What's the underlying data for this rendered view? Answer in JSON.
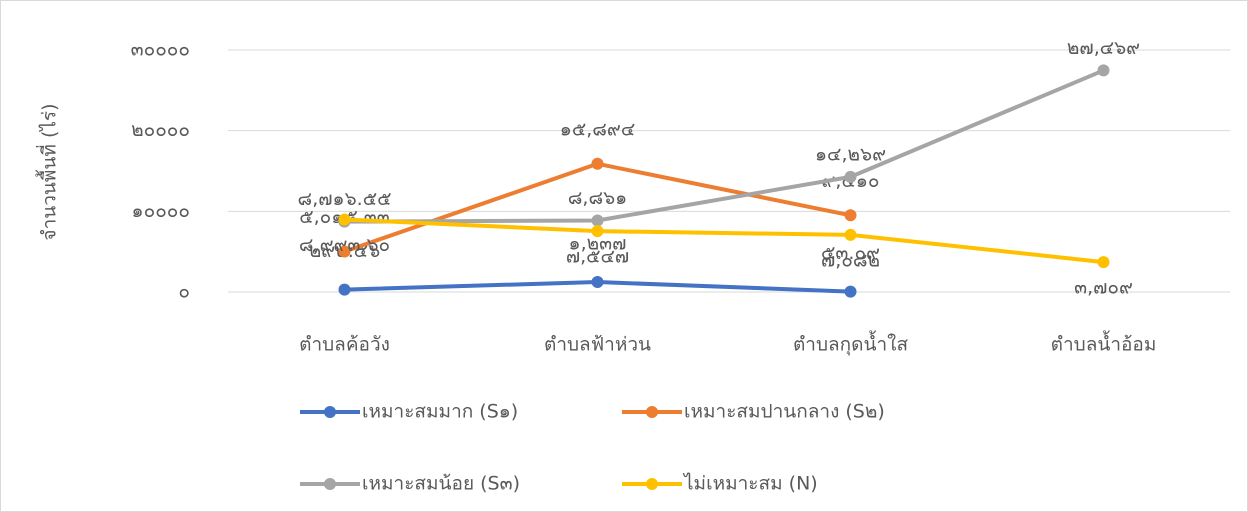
{
  "chart_data": {
    "type": "line",
    "y_axis_label": "จำนวนพื้นที่ (ไร่)",
    "categories": [
      "ตำบลค้อวัง",
      "ตำบลฟ้าห่วน",
      "ตำบลกุดน้ำใส",
      "ตำบลน้ำอ้อม"
    ],
    "series": [
      {
        "name": "เหมาะสมมาก (S๑)",
        "color": "#4472c4",
        "values": [
          292.56,
          1237,
          53.09,
          null
        ],
        "value_labels": [
          "๒๙๒.๕๖",
          "๑,๒๓๗",
          "๕๓.๐๙",
          null
        ]
      },
      {
        "name": "เหมาะสมปานกลาง (S๒)",
        "color": "#ed7d31",
        "values": [
          5015.33,
          15894,
          9510,
          null
        ],
        "value_labels": [
          "๕,๐๑๕.๓๓",
          "๑๕,๘๙๔",
          "๙,๕๑๐",
          null
        ]
      },
      {
        "name": "เหมาะสมน้อย (S๓)",
        "color": "#a5a5a5",
        "values": [
          8716.55,
          8861,
          14269,
          27469
        ],
        "value_labels": [
          "๘,๗๑๖.๕๕",
          "๘,๘๖๑",
          "๑๔,๒๖๙",
          "๒๗,๔๖๙"
        ]
      },
      {
        "name": "ไม่เหมาะสม (N)",
        "color": "#ffc000",
        "values": [
          8993.6,
          7547,
          7082,
          3709
        ],
        "value_labels": [
          "๘,๙๙๓.๖๐",
          "๗,๕๔๗",
          "๗,๐๘๒",
          "๓,๗๐๙"
        ]
      }
    ],
    "ylim": [
      0,
      30000
    ],
    "yticks": [
      {
        "value": 0,
        "label": "๐"
      },
      {
        "value": 10000,
        "label": "๑๐๐๐๐"
      },
      {
        "value": 20000,
        "label": "๒๐๐๐๐"
      },
      {
        "value": 30000,
        "label": "๓๐๐๐๐"
      }
    ],
    "grid": true,
    "legend": "bottom"
  }
}
